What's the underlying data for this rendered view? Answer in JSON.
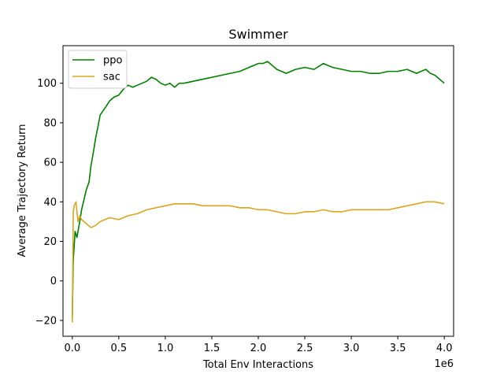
{
  "chart_data": {
    "type": "line",
    "title": "Swimmer",
    "xlabel": "Total Env Interactions",
    "ylabel": "Average Trajectory Return",
    "x_offset_text": "1e6",
    "xlim": [
      -0.1,
      4.1
    ],
    "ylim": [
      -28,
      119
    ],
    "xticks": [
      0.0,
      0.5,
      1.0,
      1.5,
      2.0,
      2.5,
      3.0,
      3.5,
      4.0
    ],
    "xtick_labels": [
      "0.0",
      "0.5",
      "1.0",
      "1.5",
      "2.0",
      "2.5",
      "3.0",
      "3.5",
      "4.0"
    ],
    "yticks": [
      -20,
      0,
      20,
      40,
      60,
      80,
      100
    ],
    "ytick_labels": [
      "−20",
      "0",
      "20",
      "40",
      "60",
      "80",
      "100"
    ],
    "grid": false,
    "legend_position": "top-left",
    "series": [
      {
        "name": "ppo",
        "color": "#008000",
        "x": [
          0.0,
          0.01,
          0.03,
          0.05,
          0.08,
          0.1,
          0.12,
          0.15,
          0.18,
          0.2,
          0.23,
          0.25,
          0.28,
          0.3,
          0.33,
          0.36,
          0.4,
          0.45,
          0.5,
          0.55,
          0.6,
          0.65,
          0.7,
          0.75,
          0.8,
          0.85,
          0.9,
          0.95,
          1.0,
          1.05,
          1.1,
          1.15,
          1.2,
          1.3,
          1.4,
          1.5,
          1.6,
          1.7,
          1.8,
          1.9,
          2.0,
          2.05,
          2.1,
          2.15,
          2.2,
          2.3,
          2.4,
          2.5,
          2.6,
          2.7,
          2.75,
          2.8,
          2.9,
          3.0,
          3.1,
          3.2,
          3.3,
          3.4,
          3.5,
          3.6,
          3.7,
          3.8,
          3.85,
          3.9,
          3.95,
          4.0
        ],
        "y": [
          -18,
          10,
          25,
          22,
          30,
          36,
          40,
          46,
          50,
          58,
          66,
          72,
          79,
          84,
          86,
          88,
          91,
          93,
          94,
          97,
          99,
          98,
          99,
          100,
          101,
          103,
          102,
          100,
          99,
          100,
          98,
          100,
          100,
          101,
          102,
          103,
          104,
          105,
          106,
          108,
          110,
          110,
          111,
          109,
          107,
          105,
          107,
          108,
          107,
          110,
          109,
          108,
          107,
          106,
          106,
          105,
          105,
          106,
          106,
          107,
          105,
          107,
          105,
          104,
          102,
          100
        ]
      },
      {
        "name": "sac",
        "color": "#daa520",
        "x": [
          0.0,
          0.01,
          0.02,
          0.04,
          0.06,
          0.08,
          0.1,
          0.15,
          0.2,
          0.25,
          0.3,
          0.35,
          0.4,
          0.5,
          0.6,
          0.7,
          0.8,
          0.9,
          1.0,
          1.1,
          1.2,
          1.3,
          1.4,
          1.5,
          1.6,
          1.7,
          1.8,
          1.9,
          2.0,
          2.1,
          2.2,
          2.3,
          2.4,
          2.5,
          2.6,
          2.7,
          2.8,
          2.9,
          3.0,
          3.1,
          3.2,
          3.3,
          3.4,
          3.5,
          3.6,
          3.7,
          3.8,
          3.9,
          4.0
        ],
        "y": [
          -21,
          35,
          38,
          40,
          30,
          33,
          31,
          29,
          27,
          28,
          30,
          31,
          32,
          31,
          33,
          34,
          36,
          37,
          38,
          39,
          39,
          39,
          38,
          38,
          38,
          38,
          37,
          37,
          36,
          36,
          35,
          34,
          34,
          35,
          35,
          36,
          35,
          35,
          36,
          36,
          36,
          36,
          36,
          37,
          38,
          39,
          40,
          40,
          39
        ]
      }
    ]
  }
}
